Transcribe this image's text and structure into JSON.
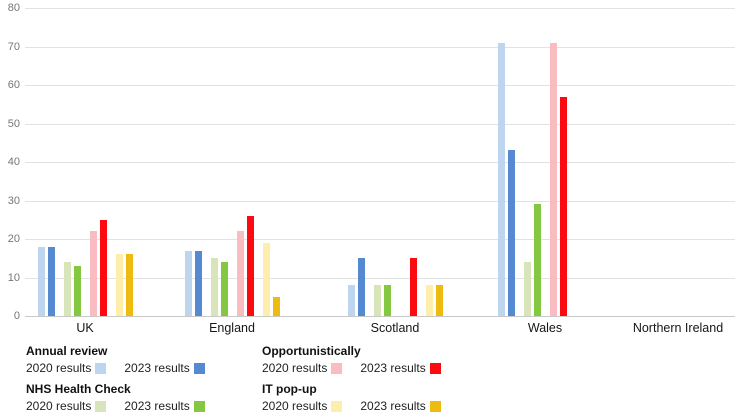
{
  "chart_data": {
    "type": "bar",
    "title": "",
    "xlabel": "",
    "ylabel": "",
    "categories": [
      "UK",
      "England",
      "Scotland",
      "Wales",
      "Northern Ireland"
    ],
    "series": [
      {
        "name": "Annual review 2020 results",
        "color": "#bdd5ee",
        "values": [
          18,
          17,
          8,
          71,
          0
        ]
      },
      {
        "name": "Annual review 2023 results",
        "color": "#5589d2",
        "values": [
          18,
          17,
          15,
          43,
          0
        ]
      },
      {
        "name": "NHS Health Check 2020 results",
        "color": "#d8e5ba",
        "values": [
          14,
          15,
          8,
          14,
          0
        ]
      },
      {
        "name": "NHS Health Check 2023 results",
        "color": "#84c841",
        "values": [
          13,
          14,
          8,
          29,
          0
        ]
      },
      {
        "name": "Opportunistically 2020 results",
        "color": "#f9bdc1",
        "values": [
          22,
          22,
          0,
          71,
          0
        ]
      },
      {
        "name": "Opportunistically 2023 results",
        "color": "#fb0b10",
        "values": [
          25,
          26,
          15,
          57,
          0
        ]
      },
      {
        "name": "IT pop-up 2020 results",
        "color": "#fdeeab",
        "values": [
          16,
          19,
          8,
          0,
          0
        ]
      },
      {
        "name": "IT pop-up 2023 results",
        "color": "#eebc11",
        "values": [
          16,
          5,
          8,
          0,
          0
        ]
      }
    ],
    "ylim": [
      0,
      80
    ],
    "yticks": [
      0,
      10,
      20,
      30,
      40,
      50,
      60,
      70,
      80
    ],
    "grid": true,
    "legend_position": "bottom-left",
    "gridline_color": "#e2e2e2",
    "axis_line_color": "#c9c9c9",
    "tick_label_color": "#767676"
  },
  "legend": {
    "columns": [
      {
        "groups": [
          {
            "title": "Annual review",
            "entries": [
              {
                "label": "2020 results",
                "color": "#bdd5ee"
              },
              {
                "label": "2023 results",
                "color": "#5589d2"
              }
            ]
          },
          {
            "title": "NHS Health Check",
            "entries": [
              {
                "label": "2020 results",
                "color": "#d8e5ba"
              },
              {
                "label": "2023 results",
                "color": "#84c841"
              }
            ]
          }
        ]
      },
      {
        "groups": [
          {
            "title": "Opportunistically",
            "entries": [
              {
                "label": "2020 results",
                "color": "#f9bdc1"
              },
              {
                "label": "2023 results",
                "color": "#fb0b10"
              }
            ]
          },
          {
            "title": "IT pop-up",
            "entries": [
              {
                "label": "2020 results",
                "color": "#fdeeab"
              },
              {
                "label": "2023 results",
                "color": "#eebc11"
              }
            ]
          }
        ]
      }
    ]
  }
}
